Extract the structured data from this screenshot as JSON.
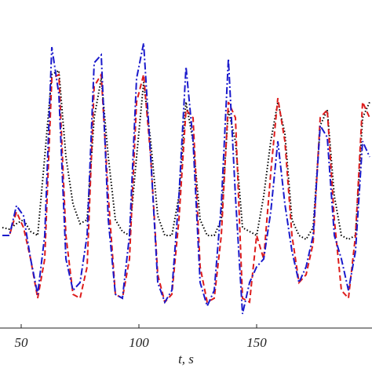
{
  "chart_data": {
    "type": "line",
    "xlabel": "t, s",
    "x": [
      42,
      45,
      48,
      51,
      54,
      57,
      60,
      63,
      66,
      69,
      72,
      75,
      78,
      81,
      84,
      87,
      90,
      93,
      96,
      99,
      102,
      105,
      108,
      111,
      114,
      117,
      120,
      123,
      126,
      129,
      132,
      135,
      138,
      141,
      144,
      147,
      150,
      153,
      156,
      159,
      162,
      165,
      168,
      171,
      174,
      177,
      180,
      183,
      186,
      189,
      192,
      195,
      198
    ],
    "series": [
      {
        "color": "#000000",
        "linestyle": "dotted",
        "values": [
          128,
          126,
          133,
          138,
          123,
          118,
          218,
          323,
          328,
          218,
          158,
          133,
          138,
          268,
          318,
          218,
          138,
          123,
          118,
          218,
          313,
          238,
          143,
          118,
          118,
          168,
          288,
          238,
          138,
          118,
          118,
          138,
          278,
          238,
          128,
          123,
          118,
          168,
          238,
          288,
          248,
          138,
          118,
          113,
          128,
          258,
          278,
          168,
          118,
          113,
          118,
          268,
          288
        ]
      },
      {
        "color": "#dd1c1c",
        "linestyle": "dashed",
        "values": [
          118,
          118,
          148,
          128,
          88,
          38,
          88,
          318,
          323,
          118,
          43,
          38,
          78,
          308,
          323,
          168,
          43,
          38,
          88,
          288,
          323,
          218,
          68,
          33,
          43,
          138,
          278,
          268,
          78,
          33,
          38,
          118,
          288,
          268,
          38,
          33,
          118,
          88,
          198,
          293,
          238,
          118,
          58,
          68,
          108,
          268,
          278,
          138,
          48,
          38,
          118,
          288,
          268
        ]
      },
      {
        "color": "#1a1acc",
        "linestyle": "dashdot",
        "values": [
          118,
          118,
          156,
          143,
          88,
          43,
          118,
          358,
          298,
          88,
          48,
          58,
          118,
          338,
          348,
          138,
          43,
          38,
          118,
          318,
          363,
          218,
          58,
          33,
          48,
          168,
          333,
          238,
          58,
          28,
          48,
          158,
          343,
          168,
          18,
          58,
          78,
          88,
          148,
          238,
          158,
          98,
          58,
          78,
          118,
          258,
          243,
          118,
          88,
          48,
          98,
          238,
          218
        ]
      }
    ],
    "xlim": [
      41,
      199
    ],
    "xticks": [
      50,
      100,
      150
    ],
    "ylim": [
      0,
      418
    ]
  }
}
